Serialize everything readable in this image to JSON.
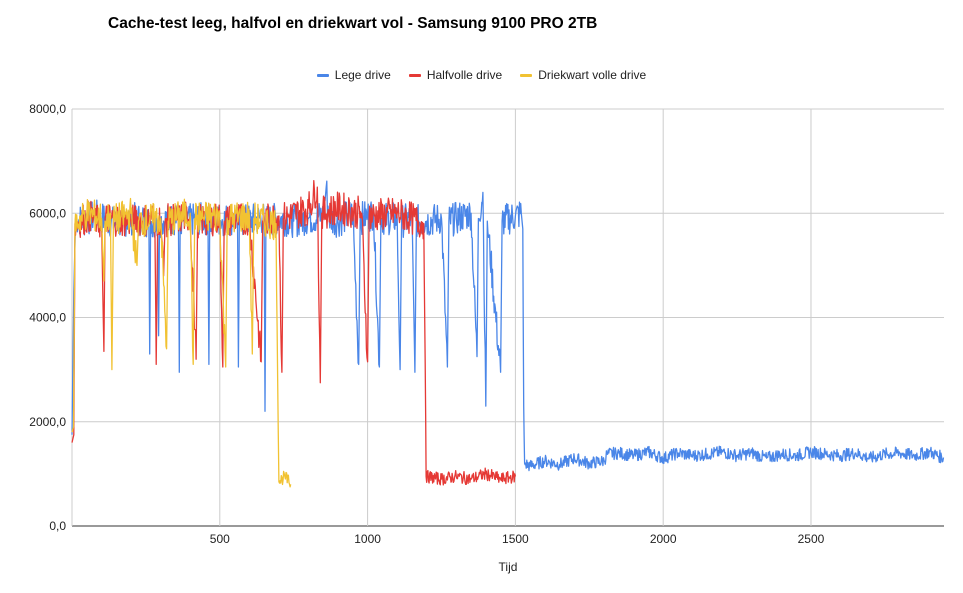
{
  "chart_data": {
    "type": "line",
    "title": "Cache-test leeg, halfvol en driekwart vol - Samsung 9100 PRO 2TB",
    "xlabel": "Tijd",
    "ylabel": "",
    "xlim": [
      0,
      2950
    ],
    "ylim": [
      0,
      8000
    ],
    "x_ticks": [
      500,
      1000,
      1500,
      2000,
      2500
    ],
    "x_tick_labels": [
      "500",
      "1000",
      "1500",
      "2000",
      "2500"
    ],
    "y_ticks": [
      0,
      2000,
      4000,
      6000,
      8000
    ],
    "y_tick_labels": [
      "0,0",
      "2000,0",
      "4000,0",
      "6000,0",
      "8000,0"
    ],
    "grid": true,
    "legend_position": "top",
    "series": [
      {
        "name": "Lege drive",
        "color": "#4a86e8",
        "points": [
          [
            0,
            1750
          ],
          [
            6,
            4500
          ],
          [
            12,
            5900
          ],
          [
            40,
            5850
          ],
          [
            80,
            5950
          ],
          [
            150,
            5800
          ],
          [
            200,
            5900
          ],
          [
            260,
            5850
          ],
          [
            263,
            3300
          ],
          [
            266,
            5850
          ],
          [
            290,
            5800
          ],
          [
            293,
            3650
          ],
          [
            296,
            5850
          ],
          [
            360,
            5900
          ],
          [
            363,
            2950
          ],
          [
            366,
            5850
          ],
          [
            460,
            5900
          ],
          [
            463,
            3100
          ],
          [
            466,
            5850
          ],
          [
            560,
            5900
          ],
          [
            563,
            3050
          ],
          [
            566,
            5850
          ],
          [
            650,
            5900
          ],
          [
            653,
            2200
          ],
          [
            656,
            5850
          ],
          [
            700,
            5900
          ],
          [
            750,
            5850
          ],
          [
            800,
            5900
          ],
          [
            850,
            5950
          ],
          [
            860,
            6500
          ],
          [
            870,
            5900
          ],
          [
            900,
            5850
          ],
          [
            950,
            6000
          ],
          [
            970,
            3100
          ],
          [
            975,
            5900
          ],
          [
            1000,
            5950
          ],
          [
            1020,
            6000
          ],
          [
            1040,
            3050
          ],
          [
            1045,
            5900
          ],
          [
            1100,
            5900
          ],
          [
            1110,
            3000
          ],
          [
            1115,
            5850
          ],
          [
            1150,
            5900
          ],
          [
            1160,
            2950
          ],
          [
            1165,
            5850
          ],
          [
            1200,
            5850
          ],
          [
            1250,
            5900
          ],
          [
            1270,
            3050
          ],
          [
            1275,
            5850
          ],
          [
            1300,
            5900
          ],
          [
            1350,
            6000
          ],
          [
            1370,
            3250
          ],
          [
            1375,
            5900
          ],
          [
            1390,
            6400
          ],
          [
            1400,
            2300
          ],
          [
            1405,
            5850
          ],
          [
            1450,
            2950
          ],
          [
            1455,
            5850
          ],
          [
            1500,
            5950
          ],
          [
            1520,
            6000
          ],
          [
            1525,
            5700
          ],
          [
            1528,
            2300
          ],
          [
            1531,
            1200
          ],
          [
            1550,
            1150
          ],
          [
            1600,
            1250
          ],
          [
            1650,
            1180
          ],
          [
            1700,
            1300
          ],
          [
            1750,
            1200
          ],
          [
            1800,
            1250
          ],
          [
            1810,
            1380
          ],
          [
            1850,
            1400
          ],
          [
            1900,
            1350
          ],
          [
            1950,
            1420
          ],
          [
            2000,
            1300
          ],
          [
            2050,
            1400
          ],
          [
            2100,
            1350
          ],
          [
            2150,
            1380
          ],
          [
            2200,
            1420
          ],
          [
            2250,
            1350
          ],
          [
            2300,
            1400
          ],
          [
            2350,
            1300
          ],
          [
            2400,
            1380
          ],
          [
            2450,
            1350
          ],
          [
            2500,
            1420
          ],
          [
            2550,
            1380
          ],
          [
            2600,
            1350
          ],
          [
            2650,
            1400
          ],
          [
            2700,
            1300
          ],
          [
            2750,
            1380
          ],
          [
            2800,
            1400
          ],
          [
            2850,
            1350
          ],
          [
            2900,
            1420
          ],
          [
            2950,
            1300
          ]
        ]
      },
      {
        "name": "Halfvolle drive",
        "color": "#e53935",
        "points": [
          [
            0,
            1600
          ],
          [
            6,
            1750
          ],
          [
            10,
            5800
          ],
          [
            60,
            5950
          ],
          [
            100,
            5800
          ],
          [
            108,
            3350
          ],
          [
            112,
            5900
          ],
          [
            200,
            5850
          ],
          [
            280,
            5900
          ],
          [
            285,
            3100
          ],
          [
            290,
            5850
          ],
          [
            300,
            5900
          ],
          [
            310,
            4800
          ],
          [
            315,
            5850
          ],
          [
            400,
            5950
          ],
          [
            420,
            3200
          ],
          [
            425,
            5850
          ],
          [
            500,
            5900
          ],
          [
            510,
            3050
          ],
          [
            515,
            5850
          ],
          [
            600,
            5900
          ],
          [
            640,
            3150
          ],
          [
            645,
            5850
          ],
          [
            700,
            5950
          ],
          [
            710,
            2950
          ],
          [
            715,
            5900
          ],
          [
            800,
            6100
          ],
          [
            830,
            6500
          ],
          [
            840,
            2750
          ],
          [
            845,
            6000
          ],
          [
            900,
            6100
          ],
          [
            980,
            6000
          ],
          [
            1000,
            3150
          ],
          [
            1005,
            5950
          ],
          [
            1100,
            6000
          ],
          [
            1150,
            5900
          ],
          [
            1190,
            5800
          ],
          [
            1195,
            3100
          ],
          [
            1198,
            950
          ],
          [
            1250,
            900
          ],
          [
            1300,
            950
          ],
          [
            1350,
            900
          ],
          [
            1400,
            1000
          ],
          [
            1450,
            900
          ],
          [
            1500,
            950
          ]
        ]
      },
      {
        "name": "Driekwart volle drive",
        "color": "#f1c232",
        "points": [
          [
            0,
            1800
          ],
          [
            5,
            1900
          ],
          [
            10,
            5800
          ],
          [
            50,
            6000
          ],
          [
            100,
            5900
          ],
          [
            108,
            4700
          ],
          [
            112,
            5850
          ],
          [
            130,
            6000
          ],
          [
            135,
            3000
          ],
          [
            140,
            5850
          ],
          [
            200,
            6000
          ],
          [
            220,
            5000
          ],
          [
            225,
            5850
          ],
          [
            300,
            5900
          ],
          [
            320,
            3400
          ],
          [
            325,
            5850
          ],
          [
            400,
            6000
          ],
          [
            410,
            3100
          ],
          [
            415,
            5900
          ],
          [
            500,
            5950
          ],
          [
            520,
            3050
          ],
          [
            525,
            5900
          ],
          [
            600,
            5950
          ],
          [
            610,
            3300
          ],
          [
            615,
            5900
          ],
          [
            690,
            5800
          ],
          [
            700,
            850
          ],
          [
            720,
            950
          ],
          [
            740,
            800
          ]
        ]
      }
    ]
  }
}
